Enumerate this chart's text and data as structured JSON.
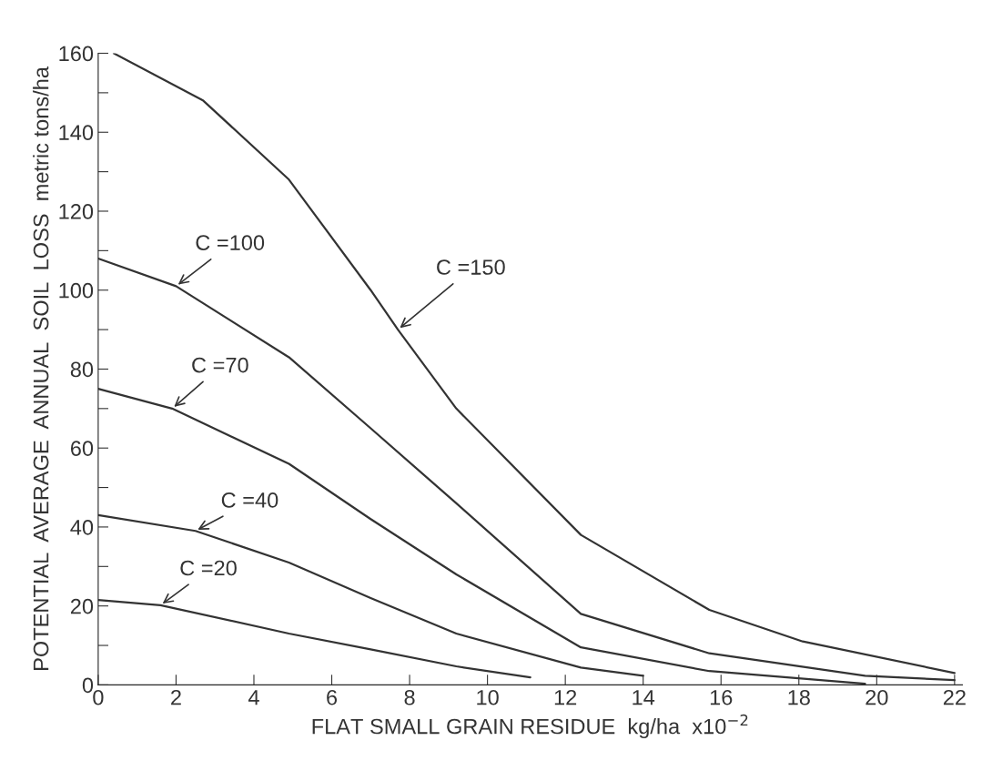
{
  "chart_data": {
    "type": "line",
    "xlabel": "FLAT SMALL GRAIN RESIDUE  kg/ha  x10$^{−2}$",
    "ylabel": "POTENTIAL  AVERAGE  ANNUAL  SOIL  LOSS  metric tons/ha",
    "xlim": [
      0,
      22.2
    ],
    "ylim": [
      0,
      160
    ],
    "xticks": [
      0,
      2,
      4,
      6,
      8,
      10,
      12,
      14,
      16,
      18,
      20,
      22
    ],
    "yticks": [
      0,
      {
        "value": 10,
        "label": null
      },
      20,
      {
        "value": 30,
        "label": null
      },
      40,
      {
        "value": 50,
        "label": null
      },
      60,
      {
        "value": 70,
        "label": null
      },
      80,
      {
        "value": 90,
        "label": null
      },
      100,
      {
        "value": 110,
        "label": null
      },
      120,
      {
        "value": 130,
        "label": null
      },
      140,
      {
        "value": 150,
        "label": null
      },
      160
    ],
    "grid": false,
    "legend": false,
    "marker": "none",
    "line_style": "solid",
    "series": [
      {
        "color": "#333333",
        "x": [
          0.4,
          2.7,
          4.9,
          7.0,
          7.7,
          9.2,
          12.4,
          15.7,
          18.1,
          22.0
        ],
        "values": [
          160,
          148,
          128,
          100,
          90,
          70,
          38,
          19,
          11,
          3
        ]
      },
      {
        "color": "#333333",
        "x": [
          0,
          2.0,
          4.9,
          7.0,
          9.2,
          12.4,
          15.7,
          19.7,
          22.0
        ],
        "values": [
          108,
          101,
          83,
          65,
          46,
          18,
          8,
          2.3,
          1.2
        ]
      },
      {
        "color": "#333333",
        "x": [
          0,
          1.9,
          4.9,
          7.0,
          9.2,
          12.4,
          15.7,
          19.7
        ],
        "values": [
          75,
          70,
          56,
          42,
          28,
          9.5,
          3.5,
          0.3
        ]
      },
      {
        "color": "#333333",
        "x": [
          0,
          2.5,
          4.9,
          7.0,
          9.2,
          12.4,
          14.0
        ],
        "values": [
          43,
          39,
          31,
          22,
          13,
          4.4,
          2.3
        ]
      },
      {
        "color": "#333333",
        "x": [
          0,
          1.6,
          4.9,
          7.0,
          9.2,
          11.1
        ],
        "values": [
          21.5,
          20.2,
          13,
          9,
          4.7,
          1.9
        ]
      }
    ],
    "annotations": [
      {
        "text": "C =150",
        "x": 7.7,
        "y": 90
      },
      {
        "text": "C =100",
        "x": 2.0,
        "y": 101
      },
      {
        "text": "C =70",
        "x": 1.9,
        "y": 70
      },
      {
        "text": "C =40",
        "x": 2.5,
        "y": 39
      },
      {
        "text": "C =20",
        "x": 1.6,
        "y": 20.2
      }
    ]
  }
}
